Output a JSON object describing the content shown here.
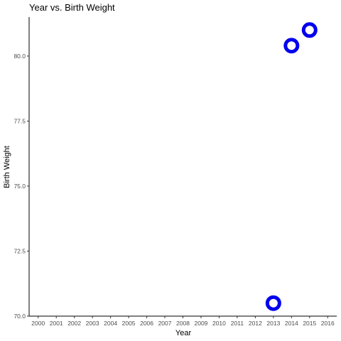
{
  "chart_data": {
    "type": "scatter",
    "title": "Year vs.  Birth Weight",
    "xlabel": "Year",
    "ylabel": "Birth Weight",
    "xticks": [
      "2000",
      "2001",
      "2002",
      "2003",
      "2004",
      "2005",
      "2006",
      "2007",
      "2008",
      "2009",
      "2010",
      "2011",
      "2012",
      "2013",
      "2014",
      "2015",
      "2016"
    ],
    "yticks": [
      "70.0",
      "72.5",
      "75.0",
      "77.5",
      "80.0"
    ],
    "xlim": [
      1999.5,
      2016.5
    ],
    "ylim": [
      70.0,
      81.5
    ],
    "points": [
      {
        "x": 2013,
        "y": 70.5
      },
      {
        "x": 2014,
        "y": 80.4
      },
      {
        "x": 2015,
        "y": 81.0
      }
    ],
    "marker_color": "#0000ee",
    "marker_fill": "#ffffff",
    "grid": false,
    "legend": "none"
  }
}
